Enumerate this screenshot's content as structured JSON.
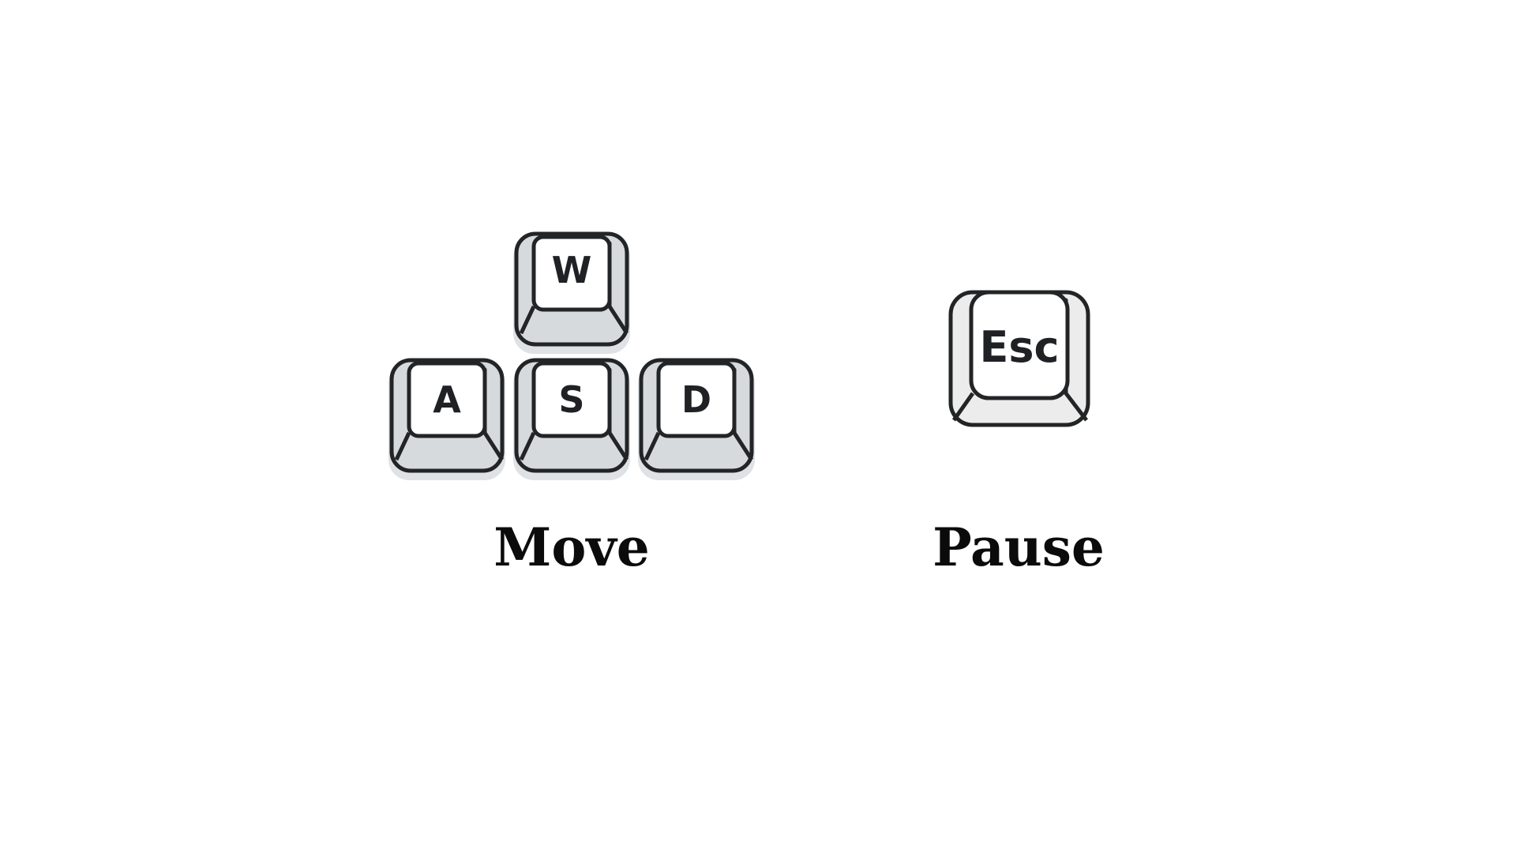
{
  "controls": {
    "move": {
      "keys": {
        "up": "W",
        "left": "A",
        "down": "S",
        "right": "D"
      },
      "label": "Move"
    },
    "pause": {
      "key": "Esc",
      "label": "Pause"
    }
  },
  "colors": {
    "outline": "#222426",
    "key_top": "#ffffff",
    "key_skirt": "#d6dadd",
    "key_shadow": "#dfe2e5",
    "esc_skirt": "#ececec",
    "label": "#0b0b0b"
  },
  "icons": {
    "w_key": "keycap-icon",
    "a_key": "keycap-icon",
    "s_key": "keycap-icon",
    "d_key": "keycap-icon",
    "esc_key": "keycap-icon"
  }
}
